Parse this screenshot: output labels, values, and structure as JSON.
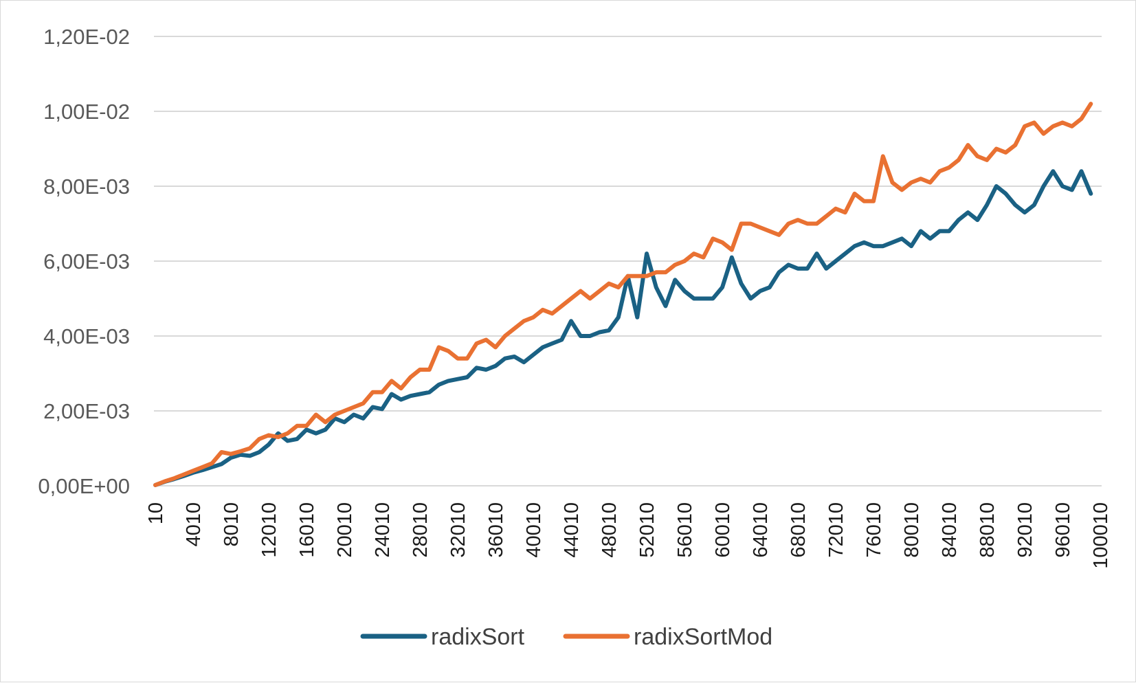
{
  "chart_data": {
    "type": "line",
    "title": "",
    "xlabel": "",
    "ylabel": "",
    "ylim": [
      0,
      0.012
    ],
    "yticks": [
      {
        "value": 0,
        "label": "0,00E+00"
      },
      {
        "value": 0.002,
        "label": "2,00E-03"
      },
      {
        "value": 0.004,
        "label": "4,00E-03"
      },
      {
        "value": 0.006,
        "label": "6,00E-03"
      },
      {
        "value": 0.008,
        "label": "8,00E-03"
      },
      {
        "value": 0.01,
        "label": "1,00E-02"
      },
      {
        "value": 0.012,
        "label": "1,20E-02"
      }
    ],
    "xticks": [
      "10",
      "4010",
      "8010",
      "12010",
      "16010",
      "20010",
      "24010",
      "28010",
      "32010",
      "36010",
      "40010",
      "44010",
      "48010",
      "52010",
      "56010",
      "60010",
      "64010",
      "68010",
      "72010",
      "76010",
      "80010",
      "84010",
      "88010",
      "92010",
      "96010",
      "100010"
    ],
    "x": [
      10,
      1010,
      2010,
      3010,
      4010,
      5010,
      6010,
      7010,
      8010,
      9010,
      10010,
      11010,
      12010,
      13010,
      14010,
      15010,
      16010,
      17010,
      18010,
      19010,
      20010,
      21010,
      22010,
      23010,
      24010,
      25010,
      26010,
      27010,
      28010,
      29010,
      30010,
      31010,
      32010,
      33010,
      34010,
      35010,
      36010,
      37010,
      38010,
      39010,
      40010,
      41010,
      42010,
      43010,
      44010,
      45010,
      46010,
      47010,
      48010,
      49010,
      50010,
      51010,
      52010,
      53010,
      54010,
      55010,
      56010,
      57010,
      58010,
      59010,
      60010,
      61010,
      62010,
      63010,
      64010,
      65010,
      66010,
      67010,
      68010,
      69010,
      70010,
      71010,
      72010,
      73010,
      74010,
      75010,
      76010,
      77010,
      78010,
      79010,
      80010,
      81010,
      82010,
      83010,
      84010,
      85010,
      86010,
      87010,
      88010,
      89010,
      90010,
      91010,
      92010,
      93010,
      94010,
      95010,
      96010,
      97010,
      98010,
      99010
    ],
    "grid": true,
    "legend_position": "bottom",
    "series": [
      {
        "name": "radixSort",
        "color": "#1a6184",
        "values": [
          2e-05,
          0.00011,
          0.00018,
          0.00026,
          0.00035,
          0.00042,
          0.0005,
          0.00058,
          0.00075,
          0.00083,
          0.0008,
          0.0009,
          0.0011,
          0.0014,
          0.0012,
          0.00125,
          0.0015,
          0.0014,
          0.0015,
          0.0018,
          0.0017,
          0.0019,
          0.0018,
          0.0021,
          0.00205,
          0.00245,
          0.0023,
          0.0024,
          0.00245,
          0.0025,
          0.0027,
          0.0028,
          0.00285,
          0.0029,
          0.00315,
          0.0031,
          0.0032,
          0.0034,
          0.00345,
          0.0033,
          0.0035,
          0.0037,
          0.0038,
          0.0039,
          0.0044,
          0.004,
          0.004,
          0.0041,
          0.00415,
          0.0045,
          0.0056,
          0.0045,
          0.0062,
          0.0053,
          0.0048,
          0.0055,
          0.0052,
          0.005,
          0.005,
          0.005,
          0.0053,
          0.0061,
          0.0054,
          0.005,
          0.0052,
          0.0053,
          0.0057,
          0.0059,
          0.0058,
          0.0058,
          0.0062,
          0.0058,
          0.006,
          0.0062,
          0.0064,
          0.0065,
          0.0064,
          0.0064,
          0.0065,
          0.0066,
          0.0064,
          0.0068,
          0.0066,
          0.0068,
          0.0068,
          0.0071,
          0.0073,
          0.0071,
          0.0075,
          0.008,
          0.0078,
          0.0075,
          0.0073,
          0.0075,
          0.008,
          0.0084,
          0.008,
          0.0079,
          0.0084,
          0.0078
        ]
      },
      {
        "name": "radixSortMod",
        "color": "#e97132",
        "values": [
          2e-05,
          0.00012,
          0.0002,
          0.0003,
          0.0004,
          0.0005,
          0.0006,
          0.0009,
          0.00085,
          0.00092,
          0.001,
          0.00125,
          0.00135,
          0.0013,
          0.0014,
          0.0016,
          0.0016,
          0.0019,
          0.0017,
          0.0019,
          0.002,
          0.0021,
          0.0022,
          0.0025,
          0.0025,
          0.0028,
          0.0026,
          0.0029,
          0.0031,
          0.0031,
          0.0037,
          0.0036,
          0.0034,
          0.0034,
          0.0038,
          0.0039,
          0.0037,
          0.004,
          0.0042,
          0.0044,
          0.0045,
          0.0047,
          0.0046,
          0.0048,
          0.005,
          0.0052,
          0.005,
          0.0052,
          0.0054,
          0.0053,
          0.0056,
          0.0056,
          0.0056,
          0.0057,
          0.0057,
          0.0059,
          0.006,
          0.0062,
          0.0061,
          0.0066,
          0.0065,
          0.0063,
          0.007,
          0.007,
          0.0069,
          0.0068,
          0.0067,
          0.007,
          0.0071,
          0.007,
          0.007,
          0.0072,
          0.0074,
          0.0073,
          0.0078,
          0.0076,
          0.0076,
          0.0088,
          0.0081,
          0.0079,
          0.0081,
          0.0082,
          0.0081,
          0.0084,
          0.0085,
          0.0087,
          0.0091,
          0.0088,
          0.0087,
          0.009,
          0.0089,
          0.0091,
          0.0096,
          0.0097,
          0.0094,
          0.0096,
          0.0097,
          0.0096,
          0.0098,
          0.0102
        ]
      }
    ]
  }
}
